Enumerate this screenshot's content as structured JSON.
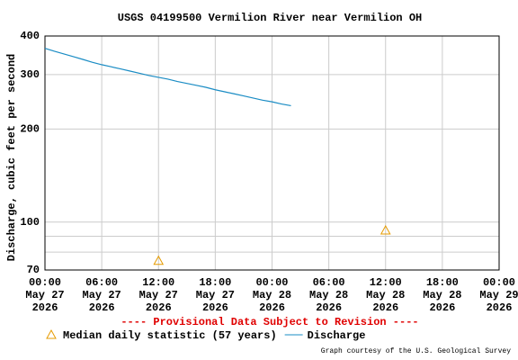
{
  "chart_data": {
    "type": "line",
    "title": "USGS 04199500 Vermilion River near Vermilion OH",
    "ylabel": "Discharge, cubic feet per second",
    "note": "---- Provisional Data Subject to Revision ----",
    "credit": "Graph courtesy of the U.S. Geological Survey",
    "log_y": true,
    "grid": true,
    "ylim": [
      70,
      400
    ],
    "yticks": [
      70,
      100,
      200,
      300,
      400
    ],
    "yminor": [
      80,
      90
    ],
    "xlim": [
      "2026-05-27 00:00",
      "2026-05-29 00:00"
    ],
    "xticks": [
      {
        "value": "2026-05-27 00:00",
        "label": "00:00\nMay 27\n2026"
      },
      {
        "value": "2026-05-27 06:00",
        "label": "06:00\nMay 27\n2026"
      },
      {
        "value": "2026-05-27 12:00",
        "label": "12:00\nMay 27\n2026"
      },
      {
        "value": "2026-05-27 18:00",
        "label": "18:00\nMay 27\n2026"
      },
      {
        "value": "2026-05-28 00:00",
        "label": "00:00\nMay 28\n2026"
      },
      {
        "value": "2026-05-28 06:00",
        "label": "06:00\nMay 28\n2026"
      },
      {
        "value": "2026-05-28 12:00",
        "label": "12:00\nMay 28\n2026"
      },
      {
        "value": "2026-05-28 18:00",
        "label": "18:00\nMay 28\n2026"
      },
      {
        "value": "2026-05-29 00:00",
        "label": "00:00\nMay 29\n2026"
      }
    ],
    "series": [
      {
        "name": "Median daily statistic (57 years)",
        "marker": "triangle",
        "color": "#e69b00",
        "x": [
          "2026-05-27 12:00",
          "2026-05-28 12:00"
        ],
        "values": [
          75,
          94
        ]
      },
      {
        "name": "Discharge",
        "marker": "line",
        "color": "#1a8cc4",
        "x": [
          "2026-05-27 00:00",
          "2026-05-27 01:00",
          "2026-05-27 02:00",
          "2026-05-27 03:00",
          "2026-05-27 04:00",
          "2026-05-27 05:00",
          "2026-05-27 06:00",
          "2026-05-27 07:00",
          "2026-05-27 08:00",
          "2026-05-27 09:00",
          "2026-05-27 10:00",
          "2026-05-27 11:00",
          "2026-05-27 12:00",
          "2026-05-27 13:00",
          "2026-05-27 14:00",
          "2026-05-27 15:00",
          "2026-05-27 16:00",
          "2026-05-27 17:00",
          "2026-05-27 18:00",
          "2026-05-27 19:00",
          "2026-05-27 20:00",
          "2026-05-27 21:00",
          "2026-05-27 22:00",
          "2026-05-27 23:00",
          "2026-05-28 00:00",
          "2026-05-28 01:00",
          "2026-05-28 02:00"
        ],
        "values": [
          365,
          357,
          350,
          343,
          336,
          329,
          323,
          318,
          313,
          308,
          303,
          298,
          294,
          290,
          285,
          281,
          277,
          273,
          268,
          264,
          260,
          256,
          252,
          248,
          245,
          241,
          238
        ]
      }
    ]
  }
}
